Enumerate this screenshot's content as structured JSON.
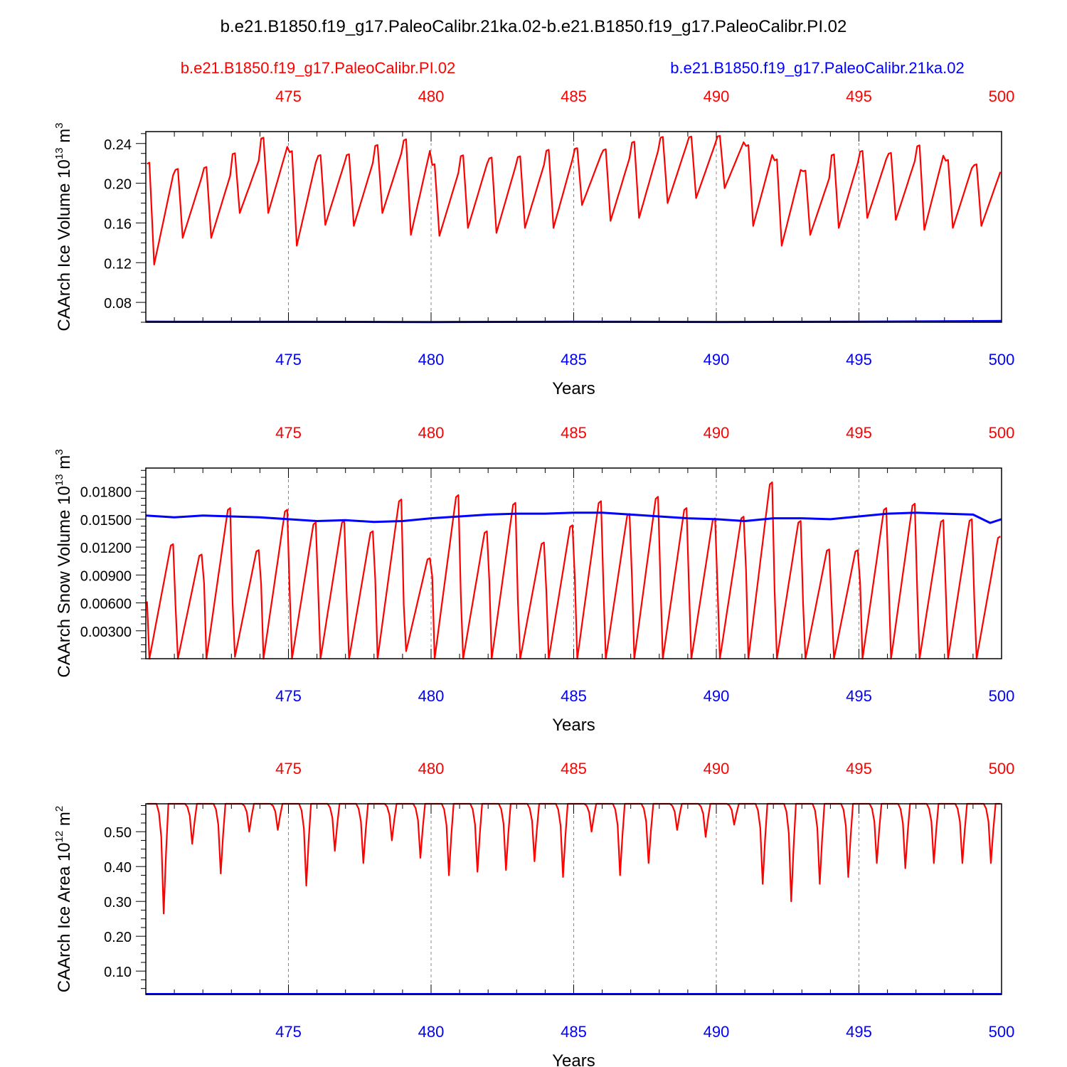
{
  "title": "b.e21.B1850.f19_g17.PaleoCalibr.21ka.02-b.e21.B1850.f19_g17.PaleoCalibr.PI.02",
  "legend": {
    "left": "b.e21.B1850.f19_g17.PaleoCalibr.PI.02",
    "right": "b.e21.B1850.f19_g17.PaleoCalibr.21ka.02"
  },
  "colors": {
    "pi": "#ff0000",
    "lgm": "#0000ff",
    "axis": "#000000",
    "grid": "#888888"
  },
  "chart_data": [
    {
      "type": "line",
      "ylabel": "CAArch Ice Volume 10^13 m^3",
      "ylabel_main": "CAArch Ice Volume 10",
      "ylabel_exp": "13",
      "ylabel_unit": " m",
      "ylabel_unit_exp": "3",
      "xlabel": "Years",
      "xlim": [
        470,
        500
      ],
      "ylim": [
        0.06,
        0.252
      ],
      "yticks": [
        0.08,
        0.12,
        0.16,
        0.2,
        0.24
      ],
      "yticklabels": [
        "0.08",
        "0.12",
        "0.16",
        "0.20",
        "0.24"
      ],
      "xticks": [
        475,
        480,
        485,
        490,
        495,
        500
      ],
      "xticklabels": [
        "475",
        "480",
        "485",
        "490",
        "495",
        "500"
      ],
      "grid": "dashed vertical lines at x ticks",
      "series": [
        {
          "name": "b.e21.B1850.f19_g17.PaleoCalibr.PI.02",
          "color": "#ff0000",
          "min": [
            0.118,
            0.145,
            0.145,
            0.17,
            0.17,
            0.137,
            0.158,
            0.157,
            0.17,
            0.148,
            0.147,
            0.155,
            0.15,
            0.155,
            0.155,
            0.178,
            0.162,
            0.165,
            0.18,
            0.185,
            0.195,
            0.157,
            0.137,
            0.148,
            0.155,
            0.165,
            0.163,
            0.153,
            0.155,
            0.157
          ],
          "max": [
            0.229,
            0.22,
            0.222,
            0.235,
            0.252,
            0.24,
            0.234,
            0.235,
            0.244,
            0.252,
            0.225,
            0.234,
            0.232,
            0.233,
            0.24,
            0.24,
            0.24,
            0.248,
            0.252,
            0.252,
            0.252,
            0.245,
            0.231,
            0.218,
            0.235,
            0.238,
            0.236,
            0.245,
            0.229,
            0.224
          ]
        },
        {
          "name": "b.e21.B1850.f19_g17.PaleoCalibr.21ka.02",
          "color": "#0000ff",
          "x": [
            470,
            475,
            480,
            485,
            490,
            495,
            500
          ],
          "y": [
            0.0605,
            0.0604,
            0.0602,
            0.0605,
            0.0603,
            0.0605,
            0.0612
          ]
        }
      ]
    },
    {
      "type": "line",
      "ylabel": "CAArch Snow Volume 10^13 m^3",
      "ylabel_main": "CAArch Snow Volume 10",
      "ylabel_exp": "13",
      "ylabel_unit": " m",
      "ylabel_unit_exp": "3",
      "xlabel": "Years",
      "xlim": [
        470,
        500
      ],
      "ylim": [
        0.0,
        0.0205
      ],
      "yticks": [
        0.003,
        0.006,
        0.009,
        0.012,
        0.015,
        0.018
      ],
      "yticklabels": [
        "0.00300",
        "0.00600",
        "0.00900",
        "0.01200",
        "0.01500",
        "0.01800"
      ],
      "xticks": [
        475,
        480,
        485,
        490,
        495,
        500
      ],
      "xticklabels": [
        "475",
        "480",
        "485",
        "490",
        "495",
        "500"
      ],
      "grid": "dashed vertical lines at x ticks",
      "series": [
        {
          "name": "b.e21.B1850.f19_g17.PaleoCalibr.PI.02",
          "color": "#ff0000",
          "min": [
            0.0,
            0.0,
            0.0,
            0.0002,
            0.0,
            0.0,
            0.0,
            0.0,
            0.0,
            0.0008,
            0.0,
            0.0,
            0.0,
            0.0,
            0.0,
            0.0,
            0.0,
            0.0,
            0.0,
            0.0,
            0.0,
            0.0,
            0.0,
            0.0,
            0.0,
            0.0,
            0.0,
            0.0,
            0.0,
            0.0
          ],
          "max": [
            0.0133,
            0.0121,
            0.0175,
            0.0126,
            0.0173,
            0.0158,
            0.016,
            0.0148,
            0.0185,
            0.0116,
            0.019,
            0.0148,
            0.0181,
            0.0135,
            0.0155,
            0.0183,
            0.0168,
            0.0188,
            0.0175,
            0.0163,
            0.0165,
            0.0205,
            0.016,
            0.0127,
            0.0126,
            0.0175,
            0.018,
            0.0161,
            0.0162,
            0.0142
          ]
        },
        {
          "name": "b.e21.B1850.f19_g17.PaleoCalibr.21ka.02",
          "color": "#0000ff",
          "x": [
            470,
            471,
            472,
            473,
            474,
            475,
            476,
            477,
            478,
            479,
            480,
            481,
            482,
            483,
            484,
            485,
            486,
            487,
            488,
            489,
            490,
            491,
            492,
            493,
            494,
            495,
            496,
            497,
            498,
            499,
            499.6,
            500
          ],
          "y": [
            0.0154,
            0.0152,
            0.0154,
            0.0153,
            0.0152,
            0.015,
            0.0148,
            0.0149,
            0.0147,
            0.0148,
            0.0151,
            0.0153,
            0.0155,
            0.0156,
            0.0156,
            0.0157,
            0.0157,
            0.0155,
            0.0153,
            0.0151,
            0.015,
            0.0148,
            0.0151,
            0.0151,
            0.015,
            0.0153,
            0.0156,
            0.0157,
            0.0156,
            0.0155,
            0.0146,
            0.015
          ]
        }
      ]
    },
    {
      "type": "line",
      "ylabel": "CAArch Ice Area 10^12 m^2",
      "ylabel_main": "CAArch Ice Area 10",
      "ylabel_exp": "12",
      "ylabel_unit": " m",
      "ylabel_unit_exp": "2",
      "xlabel": "Years",
      "xlim": [
        470,
        500
      ],
      "ylim": [
        0.033,
        0.58
      ],
      "yticks": [
        0.1,
        0.2,
        0.3,
        0.4,
        0.5
      ],
      "yticklabels": [
        "0.10",
        "0.20",
        "0.30",
        "0.40",
        "0.50"
      ],
      "xticks": [
        475,
        480,
        485,
        490,
        495,
        500
      ],
      "xticklabels": [
        "475",
        "480",
        "485",
        "490",
        "495",
        "500"
      ],
      "grid": "dashed vertical lines at x ticks",
      "series": [
        {
          "name": "b.e21.B1850.f19_g17.PaleoCalibr.PI.02",
          "color": "#ff0000",
          "max": 0.58,
          "min": [
            0.265,
            0.465,
            0.38,
            0.5,
            0.505,
            0.345,
            0.445,
            0.41,
            0.475,
            0.425,
            0.375,
            0.385,
            0.39,
            0.415,
            0.37,
            0.5,
            0.375,
            0.41,
            0.505,
            0.485,
            0.52,
            0.35,
            0.3,
            0.35,
            0.37,
            0.41,
            0.395,
            0.41,
            0.41,
            0.41
          ]
        },
        {
          "name": "b.e21.B1850.f19_g17.PaleoCalibr.21ka.02",
          "color": "#0000ff",
          "x": [
            470,
            500
          ],
          "y": [
            0.034,
            0.034
          ]
        }
      ]
    }
  ]
}
